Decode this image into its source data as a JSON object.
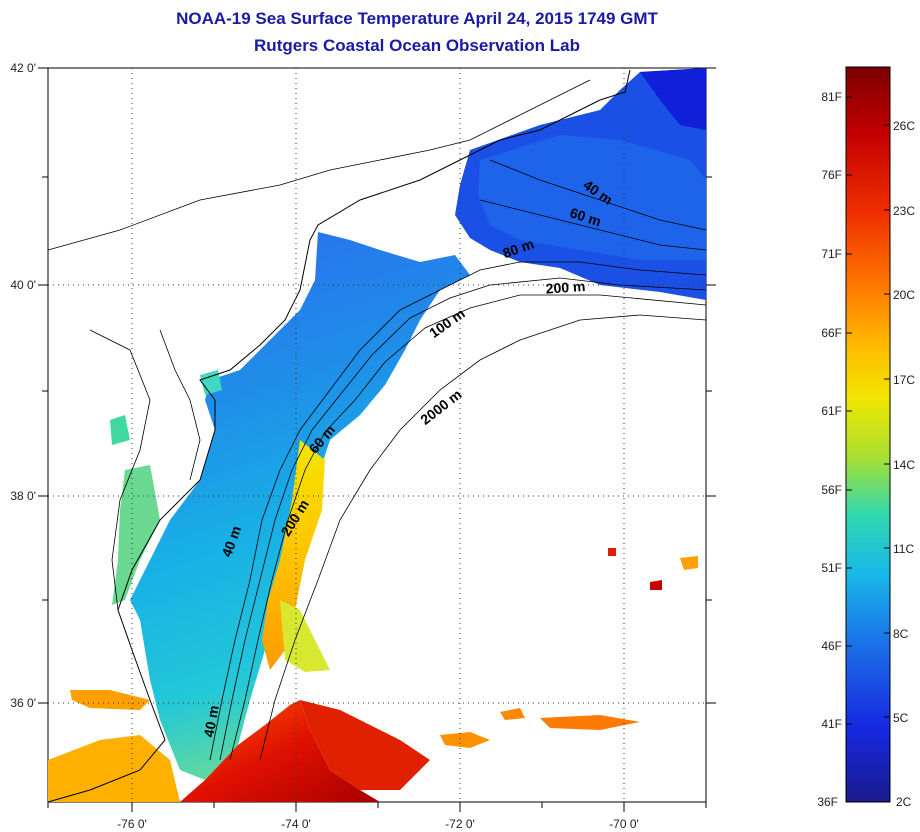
{
  "header": {
    "title": "NOAA-19 Sea Surface Temperature April 24, 2015 1749 GMT",
    "subtitle": "Rutgers Coastal Ocean Observation Lab"
  },
  "map": {
    "lon_ticks": [
      "-76 0'",
      "-74 0'",
      "-72 0'",
      "-70 0'"
    ],
    "lat_ticks": [
      "42 0'",
      "40 0'",
      "38 0'",
      "36 0'"
    ],
    "contour_labels": [
      "40 m",
      "60 m",
      "80 m",
      "200 m",
      "100 m",
      "2000 m",
      "60 m",
      "200 m",
      "40 m",
      "40 m"
    ]
  },
  "colorbar": {
    "fahrenheit": [
      "81F",
      "76F",
      "71F",
      "66F",
      "61F",
      "56F",
      "51F",
      "46F",
      "41F",
      "36F"
    ],
    "celsius": [
      "26C",
      "23C",
      "20C",
      "17C",
      "14C",
      "11C",
      "8C",
      "5C",
      "2C"
    ],
    "colors": [
      "#7a0000",
      "#c40000",
      "#f03000",
      "#ff7a00",
      "#ffbb00",
      "#f2e600",
      "#a8e030",
      "#30d8b0",
      "#18b8e8",
      "#1c74e8",
      "#1628e0",
      "#1a1a8c"
    ]
  }
}
